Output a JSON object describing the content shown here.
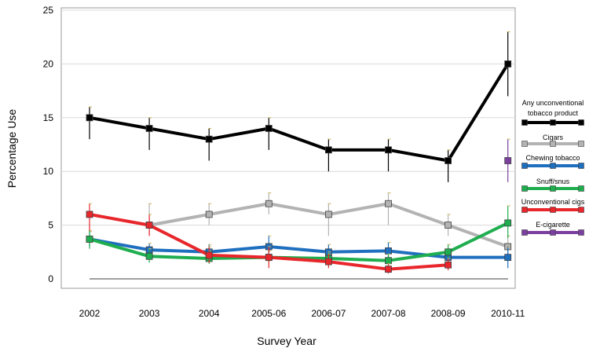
{
  "chart_data": {
    "type": "line",
    "xlabel": "Survey Year",
    "ylabel": "Percentage Use",
    "ylim": [
      0,
      25
    ],
    "yticks": [
      0,
      5,
      10,
      15,
      20,
      25
    ],
    "categories": [
      "2002",
      "2003",
      "2004",
      "2005-06",
      "2006-07",
      "2007-08",
      "2008-09",
      "2010-11"
    ],
    "grid": "horizontal",
    "legend_position": "right",
    "series": [
      {
        "name": "Any unconventional tobacco product",
        "color": "#000000",
        "values": [
          15,
          14,
          13,
          14,
          12,
          12,
          11,
          20
        ],
        "err_low": [
          13,
          12,
          11,
          12,
          10,
          10,
          9,
          17
        ],
        "err_high": [
          16,
          15,
          14,
          15,
          13,
          13,
          12,
          23
        ]
      },
      {
        "name": "Cigars",
        "color": "#b3b3b3",
        "values": [
          null,
          5,
          6,
          7,
          6,
          7,
          5,
          3
        ],
        "err_low": [
          null,
          4,
          5,
          6,
          4,
          5,
          4,
          2
        ],
        "err_high": [
          null,
          7,
          7,
          8,
          7,
          8,
          6,
          4
        ]
      },
      {
        "name": "Chewing tobacco",
        "color": "#1f6fbf",
        "values": [
          3.7,
          2.7,
          2.5,
          3,
          2.5,
          2.6,
          2,
          2
        ],
        "err_low": [
          3,
          2,
          1.8,
          2.2,
          1.8,
          1.9,
          1.5,
          1
        ],
        "err_high": [
          4.4,
          3.3,
          3.2,
          4,
          3.2,
          3.4,
          2.6,
          3
        ]
      },
      {
        "name": "Snuff/snus",
        "color": "#1fae4f",
        "values": [
          3.7,
          2.1,
          1.9,
          2,
          1.9,
          1.7,
          2.5,
          5.2
        ],
        "err_low": [
          2.8,
          1.5,
          1.4,
          1.5,
          1.4,
          1.2,
          1.8,
          3.8
        ],
        "err_high": [
          4.5,
          2.8,
          2.6,
          2.6,
          2.5,
          2.3,
          3.2,
          6.8
        ]
      },
      {
        "name": "Unconventional cigs",
        "color": "#e8262b",
        "values": [
          6,
          5,
          2.2,
          2,
          1.6,
          0.9,
          1.3,
          null
        ],
        "err_low": [
          4.5,
          4,
          1.5,
          1,
          1,
          0.5,
          0.8,
          null
        ],
        "err_high": [
          7,
          6,
          3,
          3,
          2.3,
          1.4,
          1.9,
          null
        ]
      },
      {
        "name": "E-cigarette",
        "color": "#7b3fa0",
        "values": [
          null,
          null,
          null,
          null,
          null,
          null,
          null,
          11
        ],
        "err_low": [
          null,
          null,
          null,
          null,
          null,
          null,
          null,
          9
        ],
        "err_high": [
          null,
          null,
          null,
          null,
          null,
          null,
          null,
          13
        ]
      }
    ]
  }
}
